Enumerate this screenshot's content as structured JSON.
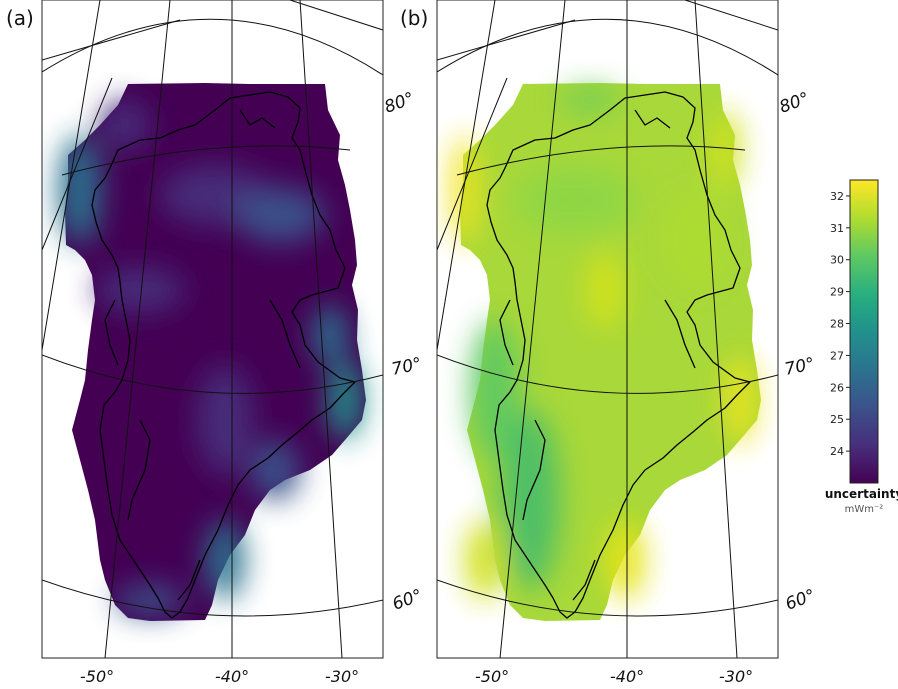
{
  "panels": [
    {
      "label": "(a)"
    },
    {
      "label": "(b)"
    }
  ],
  "latitude_labels": [
    "80°",
    "70°",
    "60°"
  ],
  "longitude_labels": [
    "-50°",
    "-40°",
    "-30°"
  ],
  "legend": {
    "title": "uncertainty",
    "unit": "mWm⁻²",
    "ticks": [
      "32",
      "31",
      "30",
      "29",
      "28",
      "27",
      "26",
      "25",
      "24"
    ],
    "range": [
      23,
      32.5
    ],
    "colormap": "viridis"
  },
  "colors": {
    "viridis": [
      "#440154",
      "#472d7b",
      "#3b528b",
      "#2c728e",
      "#21918c",
      "#28ae80",
      "#5ec962",
      "#addc30",
      "#fde725"
    ]
  }
}
